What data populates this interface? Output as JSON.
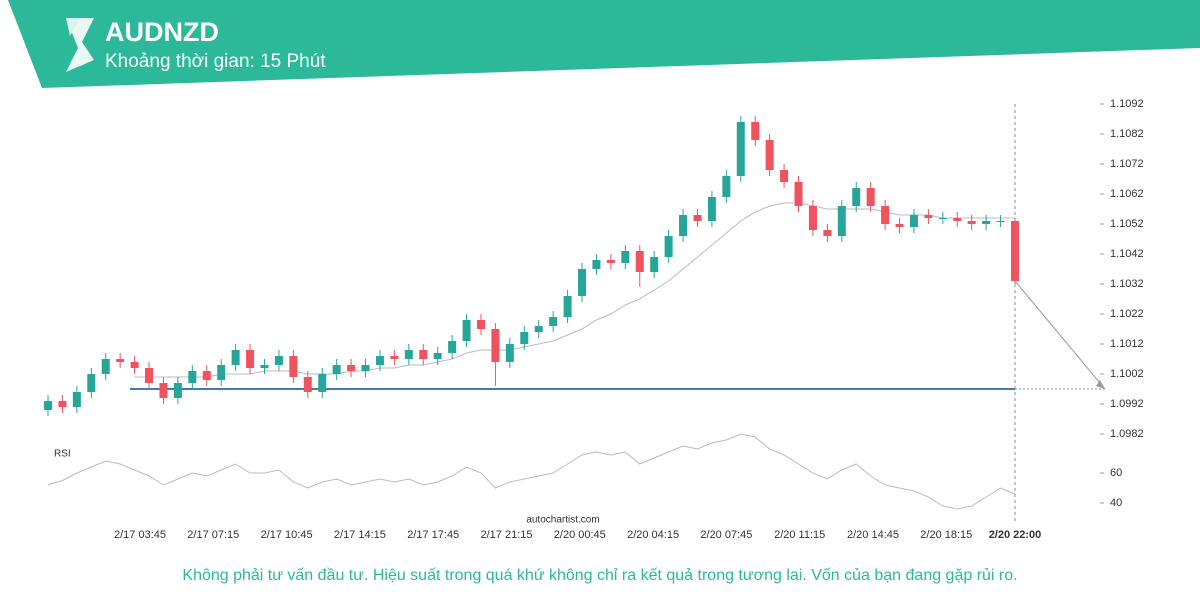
{
  "chart_data": {
    "type": "candlestick",
    "title": "AUDNZD",
    "subtitle": "Khoảng thời gian: 15 Phút",
    "color_up": "#26a69a",
    "color_down": "#f0525e",
    "open": [
      1.099,
      1.0993,
      1.0991,
      1.0996,
      1.1002,
      1.1007,
      1.1006,
      1.1004,
      1.0999,
      1.0994,
      1.0999,
      1.1003,
      1.1,
      1.1005,
      1.101,
      1.1004,
      1.1005,
      1.1008,
      1.1001,
      1.0996,
      1.1002,
      1.1005,
      1.1003,
      1.1005,
      1.1008,
      1.1007,
      1.101,
      1.1007,
      1.1009,
      1.1013,
      1.102,
      1.1017,
      1.1006,
      1.1012,
      1.1016,
      1.1018,
      1.1021,
      1.1028,
      1.1037,
      1.104,
      1.1039,
      1.1043,
      1.1036,
      1.1041,
      1.1048,
      1.1055,
      1.1053,
      1.1061,
      1.1068,
      1.1086,
      1.108,
      1.107,
      1.1066,
      1.1058,
      1.105,
      1.1048,
      1.1058,
      1.1064,
      1.1058,
      1.1052,
      1.1051,
      1.1055,
      1.1054,
      1.1054,
      1.1053,
      1.1052,
      1.1053,
      1.1053
    ],
    "high": [
      1.0995,
      1.0995,
      1.0998,
      1.1004,
      1.1009,
      1.1009,
      1.1008,
      1.1006,
      1.1001,
      1.1001,
      1.1005,
      1.1005,
      1.1007,
      1.1012,
      1.1012,
      1.1007,
      1.101,
      1.101,
      1.1003,
      1.1004,
      1.1007,
      1.1007,
      1.1007,
      1.101,
      1.101,
      1.1012,
      1.1012,
      1.1011,
      1.1015,
      1.1022,
      1.1022,
      1.1019,
      1.1014,
      1.1018,
      1.102,
      1.1023,
      1.103,
      1.1039,
      1.1042,
      1.1042,
      1.1045,
      1.1045,
      1.1043,
      1.105,
      1.1057,
      1.1057,
      1.1063,
      1.107,
      1.1088,
      1.1088,
      1.1082,
      1.1072,
      1.1068,
      1.106,
      1.1052,
      1.106,
      1.1066,
      1.1066,
      1.106,
      1.1054,
      1.1057,
      1.1057,
      1.1056,
      1.1056,
      1.1055,
      1.1055,
      1.1055,
      1.1054
    ],
    "low": [
      1.0988,
      1.0989,
      1.0989,
      1.0994,
      1.1,
      1.1004,
      1.1002,
      1.0997,
      1.0992,
      1.0992,
      1.0997,
      1.0998,
      1.0998,
      1.1003,
      1.1002,
      1.1002,
      1.1003,
      1.0999,
      1.0994,
      1.0994,
      1.1,
      1.1001,
      1.1001,
      1.1003,
      1.1005,
      1.1005,
      1.1005,
      1.1005,
      1.1007,
      1.1011,
      1.1015,
      1.0998,
      1.1004,
      1.101,
      1.1014,
      1.1016,
      1.1019,
      1.1026,
      1.1035,
      1.1037,
      1.1037,
      1.1031,
      1.1034,
      1.1039,
      1.1046,
      1.1051,
      1.1051,
      1.1059,
      1.1066,
      1.1078,
      1.1068,
      1.1064,
      1.1056,
      1.1048,
      1.1046,
      1.1046,
      1.1056,
      1.1056,
      1.105,
      1.1049,
      1.1049,
      1.1052,
      1.1052,
      1.1051,
      1.105,
      1.105,
      1.1051,
      1.1032
    ],
    "close": [
      1.0993,
      1.0991,
      1.0996,
      1.1002,
      1.1007,
      1.1006,
      1.1004,
      1.0999,
      1.0994,
      1.0999,
      1.1003,
      1.1,
      1.1005,
      1.101,
      1.1004,
      1.1005,
      1.1008,
      1.1001,
      1.0996,
      1.1002,
      1.1005,
      1.1003,
      1.1005,
      1.1008,
      1.1007,
      1.101,
      1.1007,
      1.1009,
      1.1013,
      1.102,
      1.1017,
      1.1006,
      1.1012,
      1.1016,
      1.1018,
      1.1021,
      1.1028,
      1.1037,
      1.104,
      1.1039,
      1.1043,
      1.1036,
      1.1041,
      1.1048,
      1.1055,
      1.1053,
      1.1061,
      1.1068,
      1.1086,
      1.108,
      1.107,
      1.1066,
      1.1058,
      1.105,
      1.1048,
      1.1058,
      1.1064,
      1.1058,
      1.1052,
      1.1051,
      1.1055,
      1.1054,
      1.1054,
      1.1053,
      1.1052,
      1.1053,
      1.1053,
      1.1033
    ],
    "ma": [
      null,
      null,
      null,
      null,
      null,
      null,
      1.1001,
      1.1001,
      1.1001,
      1.1001,
      1.1001,
      1.1001,
      1.1002,
      1.1002,
      1.1002,
      1.1003,
      1.1003,
      1.1003,
      1.1002,
      1.1002,
      1.1002,
      1.1003,
      1.1003,
      1.1004,
      1.1004,
      1.1005,
      1.1005,
      1.1006,
      1.1007,
      1.1009,
      1.101,
      1.101,
      1.101,
      1.1011,
      1.1012,
      1.1013,
      1.1015,
      1.1017,
      1.102,
      1.1022,
      1.1025,
      1.1027,
      1.103,
      1.1033,
      1.1037,
      1.1041,
      1.1045,
      1.1049,
      1.1053,
      1.1056,
      1.1058,
      1.1059,
      1.1059,
      1.1058,
      1.1057,
      1.1057,
      1.1057,
      1.1057,
      1.1056,
      1.1055,
      1.1055,
      1.1055,
      1.1054,
      1.1054,
      1.1054,
      1.1054,
      1.1054,
      1.1054
    ],
    "level": 1.0997,
    "ylim": [
      1.0982,
      1.1092
    ],
    "yticks": [
      1.1092,
      1.1082,
      1.1072,
      1.1062,
      1.1052,
      1.1042,
      1.1032,
      1.1022,
      1.1012,
      1.1002,
      1.0992,
      1.0982
    ],
    "x_tick_labels": [
      "2/17 03:45",
      "2/17 07:15",
      "2/17 10:45",
      "2/17 14:15",
      "2/17 17:45",
      "2/17 21:15",
      "2/20 00:45",
      "2/20 04:15",
      "2/20 07:45",
      "2/20 11:15",
      "2/20 14:45",
      "2/20 18:15"
    ],
    "last_label": "2/20 22:00",
    "rsi": {
      "label": "RSI",
      "values": [
        52,
        55,
        60,
        64,
        68,
        66,
        62,
        58,
        52,
        56,
        60,
        58,
        62,
        66,
        60,
        60,
        62,
        54,
        50,
        54,
        56,
        52,
        54,
        56,
        54,
        56,
        52,
        54,
        58,
        64,
        60,
        50,
        54,
        56,
        58,
        60,
        66,
        72,
        74,
        72,
        74,
        66,
        70,
        74,
        78,
        76,
        80,
        82,
        86,
        84,
        76,
        72,
        66,
        60,
        56,
        62,
        66,
        58,
        52,
        50,
        48,
        44,
        38,
        36,
        38,
        44,
        50,
        46
      ],
      "ylim": [
        30,
        85
      ],
      "yticks": [
        60,
        40
      ]
    }
  },
  "watermark": "autochartist.com",
  "disclaimer": "Không phải tư vấn đầu tư. Hiệu suất trong quá khứ không chỉ ra kết quả trong tương lai. Vốn của bạn đang gặp rủi ro."
}
